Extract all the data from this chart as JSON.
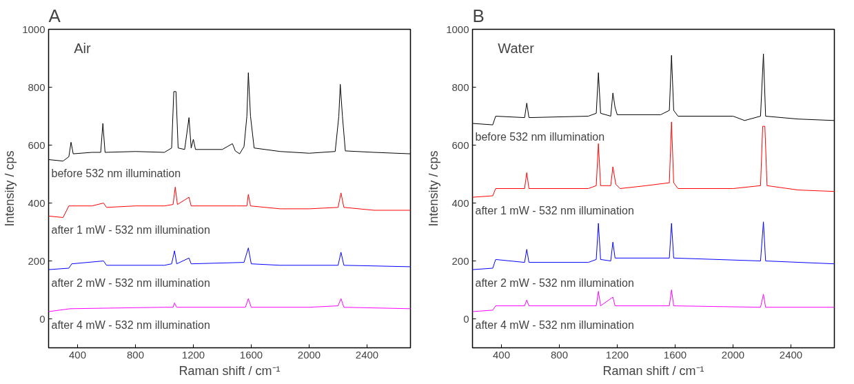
{
  "chart_data": [
    {
      "type": "line",
      "title": "A",
      "xlabel": "Raman shift / cm⁻¹",
      "ylabel": "Intensity / cps",
      "xlim": [
        200,
        2700
      ],
      "ylim": [
        -100,
        1000
      ],
      "xticks": [
        400,
        800,
        1200,
        1600,
        2000,
        2400
      ],
      "yticks": [
        0,
        200,
        400,
        600,
        800,
        1000
      ],
      "grid": false,
      "annotations": [
        "Air"
      ],
      "series": [
        {
          "name": "before 532 nm illumination",
          "color": "#000000",
          "x": [
            200,
            300,
            340,
            355,
            370,
            500,
            560,
            575,
            590,
            800,
            1000,
            1050,
            1065,
            1080,
            1095,
            1140,
            1170,
            1185,
            1200,
            1215,
            1400,
            1470,
            1490,
            1520,
            1550,
            1570,
            1580,
            1595,
            1620,
            1800,
            2000,
            2180,
            2205,
            2215,
            2230,
            2250,
            2450,
            2700
          ],
          "values": [
            550,
            545,
            560,
            610,
            570,
            575,
            575,
            675,
            575,
            578,
            575,
            590,
            785,
            785,
            590,
            585,
            695,
            590,
            620,
            585,
            585,
            605,
            580,
            570,
            595,
            700,
            850,
            700,
            590,
            578,
            572,
            578,
            700,
            810,
            700,
            580,
            575,
            570
          ]
        },
        {
          "name": "after 1 mW - 532 nm illumination",
          "color": "#ff0000",
          "x": [
            200,
            300,
            340,
            500,
            580,
            600,
            800,
            1000,
            1060,
            1075,
            1090,
            1170,
            1185,
            1500,
            1570,
            1580,
            1595,
            1800,
            2000,
            2200,
            2220,
            2240,
            2450,
            2700
          ],
          "values": [
            355,
            350,
            390,
            390,
            400,
            385,
            390,
            390,
            395,
            455,
            395,
            420,
            390,
            390,
            390,
            430,
            390,
            380,
            380,
            385,
            435,
            385,
            375,
            375
          ]
        },
        {
          "name": "after 2 mW - 532 nm illumination",
          "color": "#0000ff",
          "x": [
            200,
            340,
            360,
            580,
            600,
            1000,
            1050,
            1070,
            1085,
            1170,
            1185,
            1550,
            1580,
            1600,
            1800,
            2200,
            2220,
            2240,
            2700
          ],
          "values": [
            170,
            175,
            190,
            200,
            185,
            185,
            190,
            235,
            190,
            210,
            190,
            195,
            245,
            190,
            185,
            185,
            230,
            185,
            180
          ]
        },
        {
          "name": "after 4 mW - 532 nm illumination",
          "color": "#ff00ff",
          "x": [
            200,
            350,
            1000,
            1060,
            1070,
            1085,
            1560,
            1580,
            1600,
            2000,
            2200,
            2220,
            2240,
            2700
          ],
          "values": [
            25,
            35,
            40,
            40,
            55,
            40,
            40,
            70,
            40,
            40,
            45,
            70,
            40,
            35
          ]
        }
      ]
    },
    {
      "type": "line",
      "title": "B",
      "xlabel": "Raman shift / cm⁻¹",
      "ylabel": "Intensity / cps",
      "xlim": [
        200,
        2700
      ],
      "ylim": [
        -100,
        1000
      ],
      "xticks": [
        400,
        800,
        1200,
        1600,
        2000,
        2400
      ],
      "yticks": [
        0,
        200,
        400,
        600,
        800,
        1000
      ],
      "grid": false,
      "annotations": [
        "Water"
      ],
      "series": [
        {
          "name": "before 532 nm illumination",
          "color": "#000000",
          "x": [
            200,
            340,
            360,
            560,
            575,
            590,
            1000,
            1055,
            1070,
            1085,
            1155,
            1170,
            1185,
            1200,
            1500,
            1560,
            1575,
            1590,
            1620,
            2000,
            2080,
            2190,
            2210,
            2225,
            2450,
            2700
          ],
          "values": [
            675,
            670,
            700,
            695,
            745,
            695,
            700,
            710,
            850,
            710,
            700,
            780,
            730,
            705,
            705,
            720,
            910,
            720,
            700,
            700,
            685,
            700,
            915,
            700,
            690,
            685
          ]
        },
        {
          "name": "after 1 mW - 532 nm illumination",
          "color": "#ff0000",
          "x": [
            200,
            340,
            360,
            560,
            575,
            590,
            1000,
            1055,
            1070,
            1085,
            1155,
            1170,
            1190,
            1220,
            1400,
            1560,
            1575,
            1590,
            1620,
            2000,
            2190,
            2205,
            2220,
            2235,
            2450,
            2700
          ],
          "values": [
            420,
            425,
            450,
            450,
            505,
            450,
            450,
            460,
            605,
            460,
            460,
            525,
            465,
            450,
            460,
            470,
            680,
            470,
            450,
            450,
            460,
            665,
            665,
            460,
            445,
            440
          ]
        },
        {
          "name": "after 2 mW - 532 nm illumination",
          "color": "#0000ff",
          "x": [
            200,
            340,
            360,
            560,
            575,
            590,
            1000,
            1055,
            1070,
            1085,
            1155,
            1170,
            1185,
            1560,
            1575,
            1590,
            2190,
            2210,
            2225,
            2700
          ],
          "values": [
            170,
            175,
            205,
            195,
            240,
            195,
            195,
            205,
            330,
            205,
            200,
            265,
            210,
            210,
            330,
            210,
            200,
            335,
            200,
            190
          ]
        },
        {
          "name": "after 4 mW - 532 nm illumination",
          "color": "#ff00ff",
          "x": [
            200,
            340,
            360,
            560,
            575,
            590,
            1055,
            1070,
            1085,
            1170,
            1185,
            1560,
            1575,
            1590,
            2190,
            2210,
            2225,
            2700
          ],
          "values": [
            25,
            30,
            45,
            45,
            65,
            45,
            45,
            95,
            45,
            75,
            45,
            45,
            100,
            45,
            40,
            85,
            40,
            40
          ]
        }
      ]
    }
  ]
}
